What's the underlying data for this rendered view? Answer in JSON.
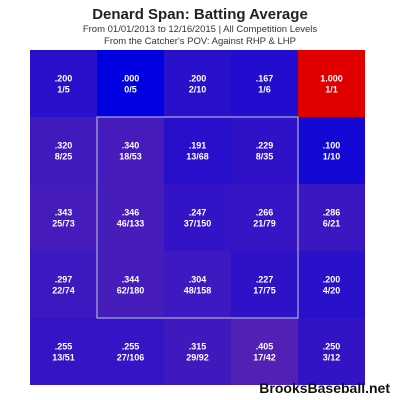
{
  "header": {
    "title": "Denard Span: Batting Average",
    "subtitle1": "From 01/01/2013 to 12/16/2015 | All Competition Levels",
    "subtitle2": "From the Catcher's POV:  Against RHP & LHP"
  },
  "watermark": "BrooksBaseball.net",
  "chart_data": {
    "type": "heatmap",
    "title": "Denard Span: Batting Average",
    "rows": 5,
    "cols": 5,
    "strike_zone": "inner 3x3 cells",
    "color_scale": {
      "low": "#0000e0",
      "mid": "#7a30a0",
      "high": "#e00000"
    },
    "cells": [
      [
        {
          "avg": ".200",
          "ratio": "1/5",
          "value": 0.2
        },
        {
          "avg": ".000",
          "ratio": "0/5",
          "value": 0.0
        },
        {
          "avg": ".200",
          "ratio": "2/10",
          "value": 0.2
        },
        {
          "avg": ".167",
          "ratio": "1/6",
          "value": 0.167
        },
        {
          "avg": "1.000",
          "ratio": "1/1",
          "value": 1.0
        }
      ],
      [
        {
          "avg": ".320",
          "ratio": "8/25",
          "value": 0.32
        },
        {
          "avg": ".340",
          "ratio": "18/53",
          "value": 0.34
        },
        {
          "avg": ".191",
          "ratio": "13/68",
          "value": 0.191
        },
        {
          "avg": ".229",
          "ratio": "8/35",
          "value": 0.229
        },
        {
          "avg": ".100",
          "ratio": "1/10",
          "value": 0.1
        }
      ],
      [
        {
          "avg": ".343",
          "ratio": "25/73",
          "value": 0.343
        },
        {
          "avg": ".346",
          "ratio": "46/133",
          "value": 0.346
        },
        {
          "avg": ".247",
          "ratio": "37/150",
          "value": 0.247
        },
        {
          "avg": ".266",
          "ratio": "21/79",
          "value": 0.266
        },
        {
          "avg": ".286",
          "ratio": "6/21",
          "value": 0.286
        }
      ],
      [
        {
          "avg": ".297",
          "ratio": "22/74",
          "value": 0.297
        },
        {
          "avg": ".344",
          "ratio": "62/180",
          "value": 0.344
        },
        {
          "avg": ".304",
          "ratio": "48/158",
          "value": 0.304
        },
        {
          "avg": ".227",
          "ratio": "17/75",
          "value": 0.227
        },
        {
          "avg": ".200",
          "ratio": "4/20",
          "value": 0.2
        }
      ],
      [
        {
          "avg": ".255",
          "ratio": "13/51",
          "value": 0.255
        },
        {
          "avg": ".255",
          "ratio": "27/106",
          "value": 0.255
        },
        {
          "avg": ".315",
          "ratio": "29/92",
          "value": 0.315
        },
        {
          "avg": ".405",
          "ratio": "17/42",
          "value": 0.405
        },
        {
          "avg": ".250",
          "ratio": "3/12",
          "value": 0.25
        }
      ]
    ]
  }
}
